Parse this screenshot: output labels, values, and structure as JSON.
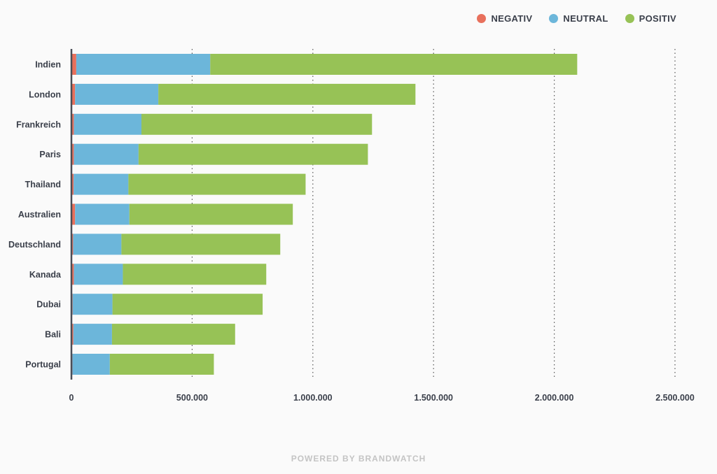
{
  "colors": {
    "negativ": "#e8705c",
    "neutral": "#6cb6da",
    "positiv": "#97c256"
  },
  "chart_data": {
    "type": "bar",
    "orientation": "horizontal",
    "stacked": true,
    "categories": [
      "Indien",
      "London",
      "Frankreich",
      "Paris",
      "Thailand",
      "Australien",
      "Deutschland",
      "Kanada",
      "Dubai",
      "Bali",
      "Portugal"
    ],
    "series": [
      {
        "name": "NEGATIV",
        "color": "#e8705c",
        "values": [
          20000,
          15000,
          10000,
          10000,
          9000,
          15000,
          7000,
          10000,
          5000,
          8000,
          4000
        ]
      },
      {
        "name": "NEUTRAL",
        "color": "#6cb6da",
        "values": [
          555000,
          345000,
          280000,
          268000,
          227000,
          225000,
          200000,
          203000,
          165000,
          160000,
          155000
        ]
      },
      {
        "name": "POSITIV",
        "color": "#97c256",
        "values": [
          1520000,
          1065000,
          955000,
          950000,
          734000,
          677000,
          658000,
          594000,
          622000,
          510000,
          431000
        ]
      }
    ],
    "xlim": [
      0,
      2500000
    ],
    "xticks": [
      0,
      500000,
      1000000,
      1500000,
      2000000,
      2500000
    ],
    "xtick_labels": [
      "0",
      "500.000",
      "1.000.000",
      "1.500.000",
      "2.000.000",
      "2.500.000"
    ],
    "grid": "vertical-dotted",
    "legend_position": "top-right"
  },
  "legend": [
    {
      "label": "NEGATIV",
      "color": "#e8705c"
    },
    {
      "label": "NEUTRAL",
      "color": "#6cb6da"
    },
    {
      "label": "POSITIV",
      "color": "#97c256"
    }
  ],
  "footer": "POWERED BY BRANDWATCH"
}
